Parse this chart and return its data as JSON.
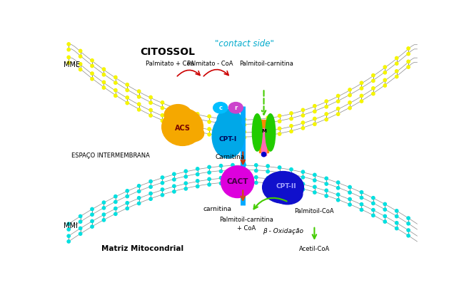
{
  "title": "CITOSSOL",
  "contact_side": "\"contact side\"",
  "mme_label": "MME",
  "mmi_label": "MMI",
  "espaco_label": "ESPAÇO INTERMEMBRANA",
  "matriz_label": "Matriz Mitocondrial",
  "palmitato_coa": "Palmitato + CoA",
  "palmitato_minus_coa": "Palmitato - CoA",
  "palmitoil_carnitina_top": "Palmitoil-carnitina",
  "carnitina_top": "Carnitina",
  "carnitina_bottom": "carnitina",
  "palmitoil_carnitina_coa": "Palmitoil-carnitina\n+ CoA",
  "palmitoil_coa": "Palmitoil-CoA",
  "beta_oxidacao": "β - Oxidação",
  "acetil_coa": "Acetil-CoA",
  "acs_label": "ACS",
  "cpt1_label": "CPT-I",
  "cact_label": "CACT",
  "cpt2_label": "CPT-II",
  "bg_color": "#ffffff",
  "yellow_dot": "#f5f500",
  "cyan_dot": "#00e0e0",
  "acs_color": "#f5a800",
  "cpt1_color": "#00a8e8",
  "cact_color": "#dd00dd",
  "cpt2_color": "#1010cc",
  "green_color": "#22cc00",
  "pink_color": "#ff69b4",
  "c_bubble_color": "#00bfff",
  "r_bubble_color": "#cc44cc",
  "arrow_green": "#44cc00",
  "arrow_orange": "#cc6600",
  "arrow_red": "#cc0000",
  "channel_blue": "#00aaff",
  "text_color": "#000000"
}
